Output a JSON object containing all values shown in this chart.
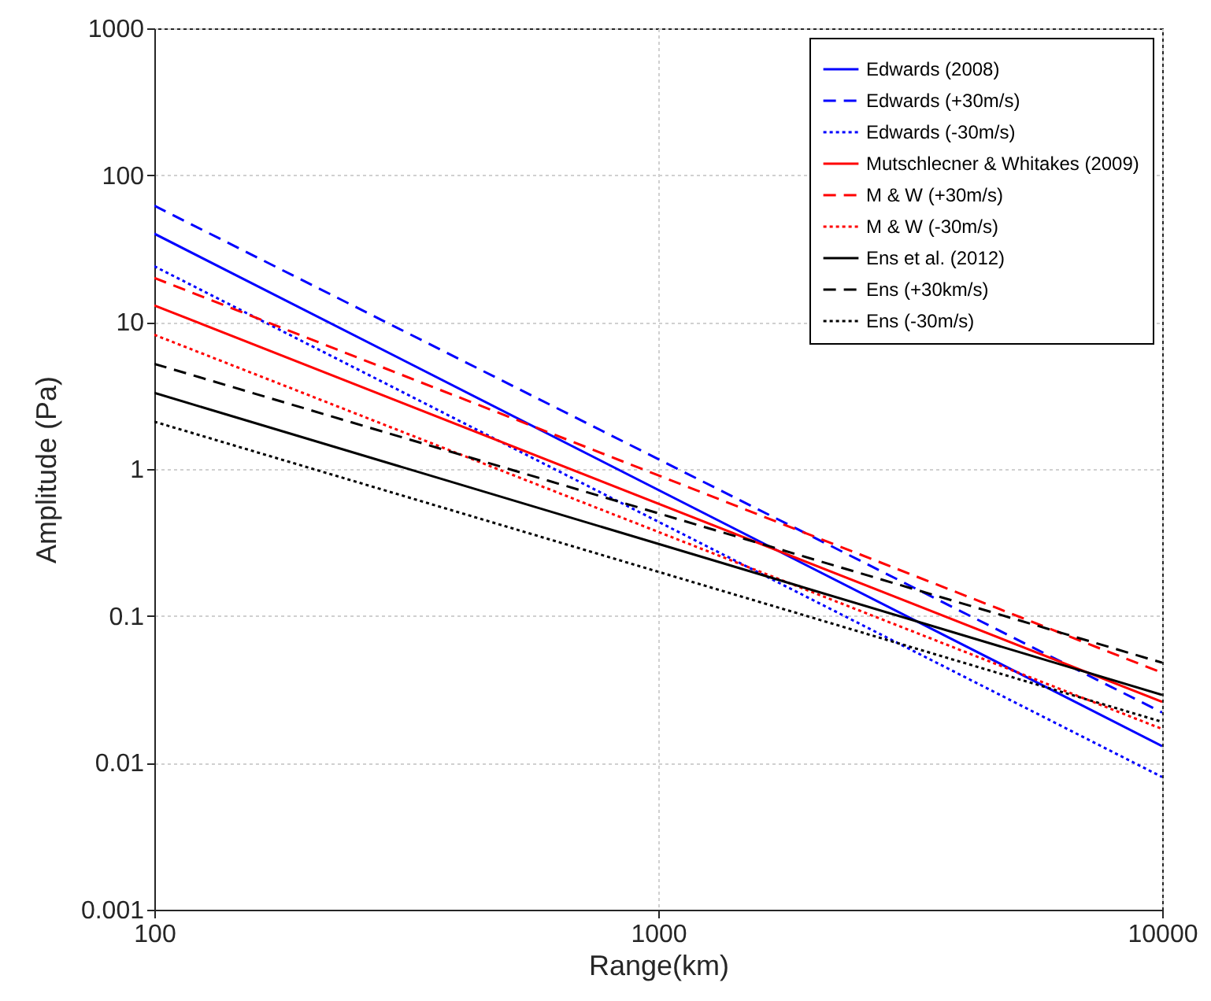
{
  "chart_data": {
    "type": "line",
    "xlabel": "Range(km)",
    "ylabel": "Amplitude (Pa)",
    "log": "xy",
    "x": [
      100,
      10000
    ],
    "series": [
      {
        "name": "Edwards (2008)",
        "color": "#0000ff",
        "line_style": "solid",
        "values": [
          40,
          0.013
        ]
      },
      {
        "name": "Edwards (+30m/s)",
        "color": "#0000ff",
        "line_style": "dashed",
        "values": [
          62,
          0.022
        ]
      },
      {
        "name": "Edwards (-30m/s)",
        "color": "#0000ff",
        "line_style": "dotted",
        "values": [
          24,
          0.008
        ]
      },
      {
        "name": "Mutschlecner & Whitakes (2009)",
        "color": "#ff0000",
        "line_style": "solid",
        "values": [
          13,
          0.026
        ]
      },
      {
        "name": "M & W (+30m/s)",
        "color": "#ff0000",
        "line_style": "dashed",
        "values": [
          20,
          0.041
        ]
      },
      {
        "name": "M & W (-30m/s)",
        "color": "#ff0000",
        "line_style": "dotted",
        "values": [
          8.2,
          0.017
        ]
      },
      {
        "name": "Ens et al. (2012)",
        "color": "#000000",
        "line_style": "solid",
        "values": [
          3.3,
          0.029
        ]
      },
      {
        "name": "Ens (+30km/s)",
        "color": "#000000",
        "line_style": "dashed",
        "values": [
          5.2,
          0.048
        ]
      },
      {
        "name": "Ens (-30m/s)",
        "color": "#000000",
        "line_style": "dotted",
        "values": [
          2.1,
          0.019
        ]
      }
    ],
    "xlim": [
      100,
      10000
    ],
    "xticks": [
      100,
      1000,
      10000
    ],
    "ylim": [
      0.001,
      1000
    ],
    "yticks": [
      0.001,
      0.01,
      0.1,
      1,
      10,
      100,
      1000
    ],
    "grid": true,
    "legend": "top right"
  }
}
